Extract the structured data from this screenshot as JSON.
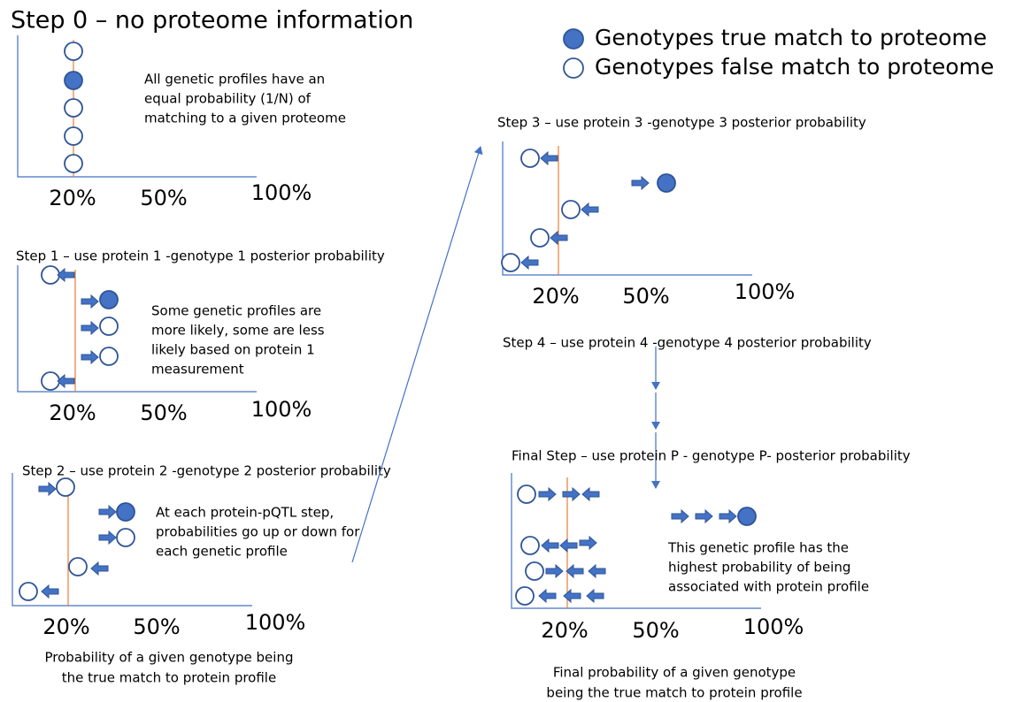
{
  "legend": [
    "Genotypes true match to proteome",
    "Genotypes false match to proteome"
  ],
  "panels": [
    {
      "heading": "Step 0 – no proteome information",
      "note": [
        "All genetic profiles have an",
        "equal probability (1/N) of",
        "matching to a given proteome"
      ],
      "axis_labels": [
        "20%",
        "50%",
        "100%"
      ]
    },
    {
      "heading": "Step 1 – use protein 1 -genotype 1 posterior probability",
      "note": [
        "Some genetic profiles are",
        "more likely, some are less",
        "likely based on protein 1",
        "measurement"
      ],
      "axis_labels": [
        "20%",
        "50%",
        "100%"
      ]
    },
    {
      "heading": "Step 2 – use protein 2 -genotype 2 posterior probability",
      "note": [
        "At each protein-pQTL step,",
        "probabilities go up or down for",
        "each genetic profile"
      ],
      "axis_labels": [
        "20%",
        "50%",
        "100%"
      ],
      "caption": [
        "Probability of a given genotype being",
        "the true match to protein profile"
      ]
    },
    {
      "heading": "Step 3  – use protein 3 -genotype 3 posterior probability",
      "axis_labels": [
        "20%",
        "50%",
        "100%"
      ]
    },
    {
      "heading": "Step 4  – use protein 4 -genotype 4 posterior probability"
    },
    {
      "heading": "Final Step – use protein P - genotype P- posterior probability",
      "note": [
        "This genetic profile has the",
        "highest probability of being",
        "associated with protein profile"
      ],
      "axis_labels": [
        "20%",
        "50%",
        "100%"
      ],
      "caption": [
        "Final probability of a given genotype",
        "being the true match to protein profile"
      ]
    }
  ]
}
